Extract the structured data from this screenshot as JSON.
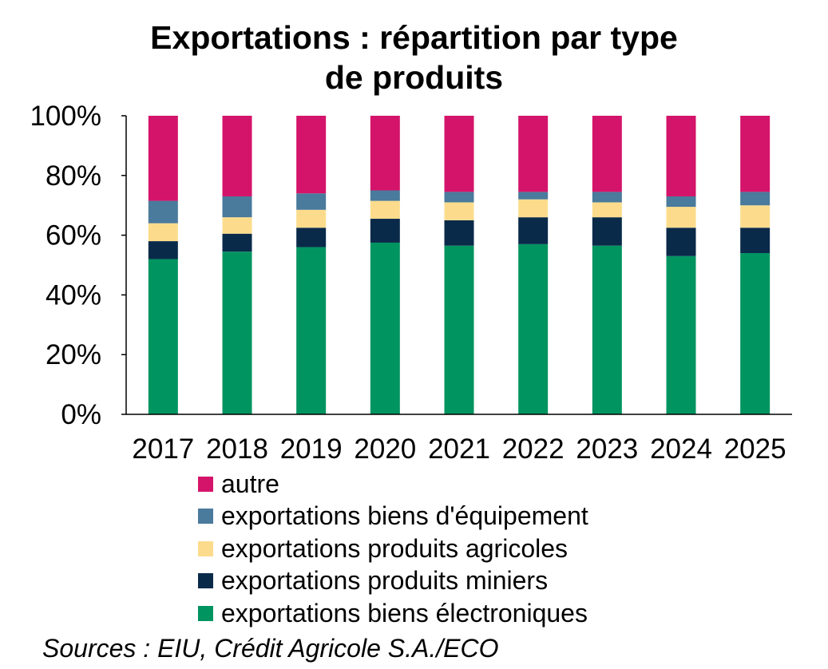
{
  "chart_data": {
    "type": "bar",
    "stacked": true,
    "title_lines": [
      "Exportations : répartition par type",
      "de produits"
    ],
    "categories": [
      "2017",
      "2018",
      "2019",
      "2020",
      "2021",
      "2022",
      "2023",
      "2024",
      "2025"
    ],
    "y_ticks": [
      "0%",
      "20%",
      "40%",
      "60%",
      "80%",
      "100%"
    ],
    "ylim": [
      0,
      100
    ],
    "grid": false,
    "legend_position": "bottom",
    "series": [
      {
        "name": "exportations biens électroniques",
        "color": "#009460",
        "values": [
          52,
          54.5,
          56,
          57.5,
          56.5,
          57,
          56.5,
          53,
          54
        ]
      },
      {
        "name": "exportations produits miniers",
        "color": "#0a2a4a",
        "values": [
          6,
          6,
          6.5,
          8,
          8.5,
          9,
          9.5,
          9.5,
          8.5
        ]
      },
      {
        "name": "exportations produits agricoles",
        "color": "#fcdc8c",
        "values": [
          6,
          5.5,
          6,
          6,
          6,
          6,
          5,
          7,
          7.5
        ]
      },
      {
        "name": "exportations biens d'équipement",
        "color": "#4a7a9c",
        "values": [
          7.5,
          7,
          5.5,
          3.5,
          3.5,
          2.5,
          3.5,
          3.5,
          4.5
        ]
      },
      {
        "name": "autre",
        "color": "#d4146a",
        "values": [
          28.5,
          27,
          26,
          25,
          25.5,
          25.5,
          25.5,
          27,
          25.5
        ]
      }
    ],
    "legend_order": [
      "autre",
      "exportations biens d'équipement",
      "exportations produits agricoles",
      "exportations produits miniers",
      "exportations biens électroniques"
    ]
  },
  "source": "Sources : EIU, Crédit Agricole S.A./ECO"
}
